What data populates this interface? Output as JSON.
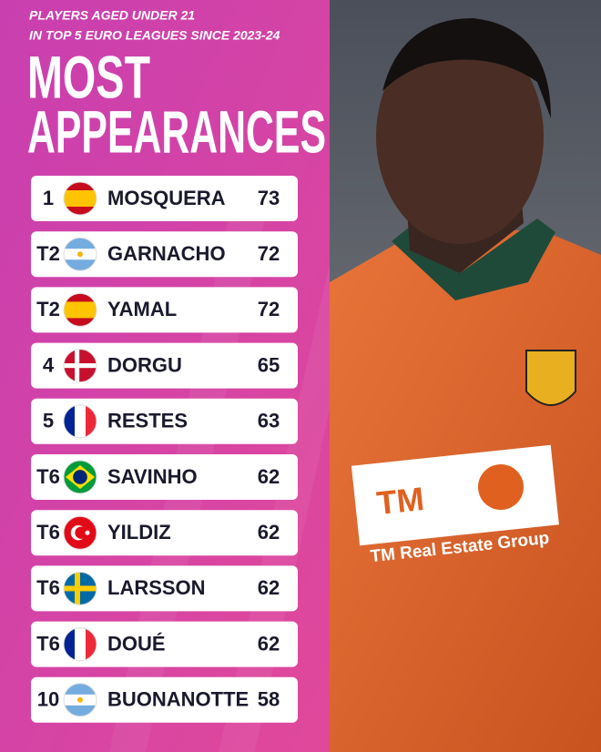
{
  "header": {
    "subtitle": [
      "PLAYERS AGED UNDER 21",
      "IN TOP 5 EURO LEAGUES SINCE 2023-24"
    ],
    "title": [
      "MOST",
      "APPEARANCES"
    ]
  },
  "table": {
    "rows": [
      {
        "rank": "1",
        "name": "MOSQUERA",
        "apps": 73
      },
      {
        "rank": "T2",
        "name": "GARNACHO",
        "apps": 72
      },
      {
        "rank": "T2",
        "name": "YAMAL",
        "apps": 72
      },
      {
        "rank": "4",
        "name": "DORGU",
        "apps": 65
      },
      {
        "rank": "5",
        "name": "RESTES",
        "apps": 63
      },
      {
        "rank": "T6",
        "name": "SAVINHO",
        "apps": 62
      },
      {
        "rank": "T6",
        "name": "YILDIZ",
        "apps": 62
      },
      {
        "rank": "T6",
        "name": "LARSSON",
        "apps": 62
      },
      {
        "rank": "T6",
        "name": "DOUÉ",
        "apps": 62
      },
      {
        "rank": "10",
        "name": "BUONANOTTE",
        "apps": 58
      }
    ]
  },
  "photo": {
    "sponsor_logo": "TM",
    "sponsor_name": "TM Real Estate Group"
  }
}
